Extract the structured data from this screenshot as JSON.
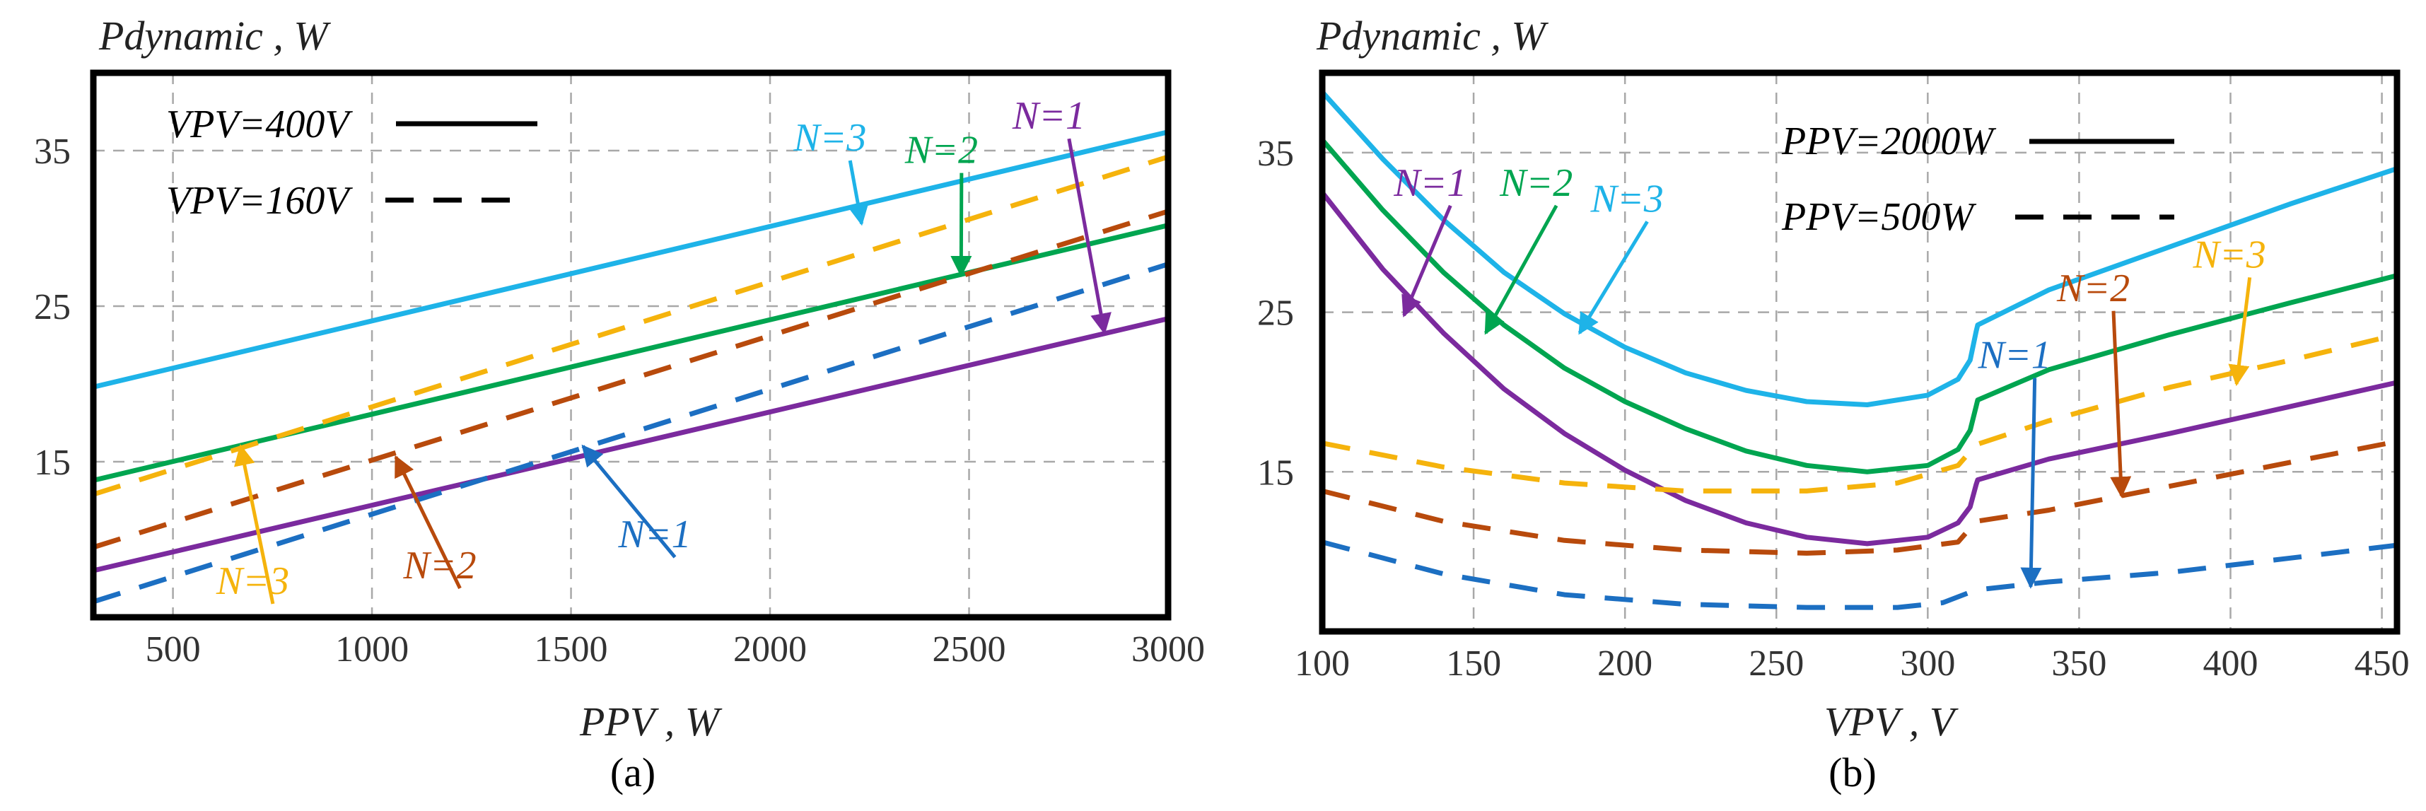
{
  "colors": {
    "N1_a": "#7b2a9e",
    "N2_a": "#00a550",
    "N3_a": "#1eb3e8",
    "N1_dash": "#1c6fc2",
    "N2_dash": "#b84a0c",
    "N3_dash": "#f5b30c",
    "N1_b": "#7b2a9e",
    "N2_b": "#00a550",
    "N3_b": "#1eb3e8"
  },
  "chart_data": [
    {
      "panel_label": "(a)",
      "type": "line",
      "ylabel": "Pdynamic , W",
      "xlabel": "PPV , W",
      "xlim": [
        300,
        3000
      ],
      "ylim": [
        5,
        40
      ],
      "xticks": [
        500,
        1000,
        1500,
        2000,
        2500,
        3000
      ],
      "yticks": [
        15,
        25,
        35
      ],
      "legend": [
        {
          "text": "VPV=400V",
          "style": "solid"
        },
        {
          "text": "VPV=160V",
          "style": "dashed"
        }
      ],
      "series": [
        {
          "name": "N=3",
          "style": "solid",
          "color_key": "N3_a",
          "x": [
            300,
            3000
          ],
          "y": [
            19.8,
            36.2
          ]
        },
        {
          "name": "N=2",
          "style": "solid",
          "color_key": "N2_a",
          "x": [
            300,
            3000
          ],
          "y": [
            13.8,
            30.2
          ]
        },
        {
          "name": "N=1",
          "style": "solid",
          "color_key": "N1_a",
          "x": [
            300,
            3000
          ],
          "y": [
            8.0,
            24.2
          ]
        },
        {
          "name": "N=3",
          "style": "dashed",
          "color_key": "N3_dash",
          "x": [
            300,
            3000
          ],
          "y": [
            12.9,
            34.6
          ]
        },
        {
          "name": "N=2",
          "style": "dashed",
          "color_key": "N2_dash",
          "x": [
            300,
            3000
          ],
          "y": [
            9.5,
            31.1
          ]
        },
        {
          "name": "N=1",
          "style": "dashed",
          "color_key": "N1_dash",
          "x": [
            300,
            3000
          ],
          "y": [
            6.0,
            27.7
          ]
        }
      ],
      "annotations": [
        {
          "text": "N=3",
          "color_key": "N3_a",
          "tx": 2130,
          "ty": 35.0,
          "ax": 2230,
          "ay": 30.3
        },
        {
          "text": "N=2",
          "color_key": "N2_a",
          "tx": 2410,
          "ty": 34.2,
          "ax": 2480,
          "ay": 27.0
        },
        {
          "text": "N=1",
          "color_key": "N1_a",
          "tx": 2680,
          "ty": 36.4,
          "ax": 2840,
          "ay": 23.3
        },
        {
          "text": "N=3",
          "color_key": "N3_dash",
          "tx": 680,
          "ty": 6.5,
          "ax": 670,
          "ay": 16.0
        },
        {
          "text": "N=2",
          "color_key": "N2_dash",
          "tx": 1150,
          "ty": 7.5,
          "ax": 1060,
          "ay": 15.3
        },
        {
          "text": "N=1",
          "color_key": "N1_dash",
          "tx": 1690,
          "ty": 9.5,
          "ax": 1530,
          "ay": 16.0
        }
      ]
    },
    {
      "panel_label": "(b)",
      "type": "line",
      "ylabel": "Pdynamic , W",
      "xlabel": "VPV , V",
      "xlim": [
        100,
        455
      ],
      "ylim": [
        5,
        40
      ],
      "xticks": [
        100,
        150,
        200,
        250,
        300,
        350,
        400,
        450
      ],
      "yticks": [
        15,
        25,
        35
      ],
      "legend": [
        {
          "text": "PPV=2000W",
          "style": "solid"
        },
        {
          "text": "PPV=500W",
          "style": "dashed"
        }
      ],
      "series": [
        {
          "name": "N=3",
          "style": "solid",
          "color_key": "N3_b",
          "x": [
            100,
            120,
            140,
            160,
            180,
            200,
            220,
            240,
            260,
            280,
            300,
            310,
            314,
            316,
            316.5,
            340,
            380,
            420,
            455
          ],
          "y": [
            38.8,
            34.6,
            30.8,
            27.5,
            24.9,
            22.8,
            21.2,
            20.1,
            19.4,
            19.2,
            19.8,
            20.8,
            22.0,
            23.8,
            24.2,
            26.4,
            29.1,
            31.8,
            34.0
          ]
        },
        {
          "name": "N=2",
          "style": "solid",
          "color_key": "N2_b",
          "x": [
            100,
            120,
            140,
            160,
            180,
            200,
            220,
            240,
            260,
            280,
            300,
            310,
            314,
            316,
            316.5,
            340,
            380,
            420,
            455
          ],
          "y": [
            35.8,
            31.4,
            27.5,
            24.2,
            21.5,
            19.4,
            17.7,
            16.3,
            15.4,
            15.0,
            15.4,
            16.4,
            17.6,
            19.1,
            19.5,
            21.4,
            23.6,
            25.6,
            27.3
          ]
        },
        {
          "name": "N=1",
          "style": "solid",
          "color_key": "N1_b",
          "x": [
            100,
            120,
            140,
            160,
            180,
            200,
            220,
            240,
            260,
            280,
            300,
            310,
            314,
            316,
            316.5,
            340,
            380,
            420,
            455
          ],
          "y": [
            32.5,
            27.7,
            23.7,
            20.2,
            17.4,
            15.1,
            13.2,
            11.8,
            10.9,
            10.5,
            10.9,
            11.8,
            12.8,
            14.2,
            14.5,
            15.8,
            17.4,
            19.1,
            20.6
          ]
        },
        {
          "name": "N=3",
          "style": "dashed",
          "color_key": "N3_dash",
          "x": [
            100,
            140,
            180,
            220,
            260,
            290,
            310,
            316,
            340,
            380,
            420,
            455
          ],
          "y": [
            16.8,
            15.3,
            14.3,
            13.8,
            13.8,
            14.3,
            15.4,
            16.7,
            18.2,
            20.3,
            22.0,
            23.6
          ]
        },
        {
          "name": "N=2",
          "style": "dashed",
          "color_key": "N2_dash",
          "x": [
            100,
            140,
            180,
            220,
            260,
            290,
            310,
            316,
            340,
            380,
            420,
            455
          ],
          "y": [
            13.8,
            11.9,
            10.7,
            10.1,
            9.9,
            10.1,
            10.6,
            11.9,
            12.6,
            14.1,
            15.6,
            16.9
          ]
        },
        {
          "name": "N=1",
          "style": "dashed",
          "color_key": "N1_dash",
          "x": [
            100,
            140,
            180,
            220,
            260,
            290,
            305,
            316,
            340,
            380,
            420,
            455
          ],
          "y": [
            10.6,
            8.6,
            7.3,
            6.7,
            6.5,
            6.5,
            6.8,
            7.6,
            8.1,
            8.7,
            9.6,
            10.4
          ]
        }
      ],
      "annotations": [
        {
          "text": "N=1",
          "color_key": "N1_b",
          "tx": 133,
          "ty": 32.3,
          "ax": 127,
          "ay": 24.8
        },
        {
          "text": "N=2",
          "color_key": "N2_b",
          "tx": 168,
          "ty": 32.3,
          "ax": 154,
          "ay": 23.7
        },
        {
          "text": "N=3",
          "color_key": "N3_b",
          "tx": 198,
          "ty": 31.3,
          "ax": 185,
          "ay": 23.7
        },
        {
          "text": "N=1",
          "color_key": "N1_dash",
          "tx": 326,
          "ty": 21.5,
          "ax": 334,
          "ay": 7.8
        },
        {
          "text": "N=2",
          "color_key": "N2_dash",
          "tx": 352,
          "ty": 25.7,
          "ax": 364,
          "ay": 13.5
        },
        {
          "text": "N=3",
          "color_key": "N3_dash",
          "tx": 397,
          "ty": 27.8,
          "ax": 402,
          "ay": 20.5
        }
      ]
    }
  ]
}
